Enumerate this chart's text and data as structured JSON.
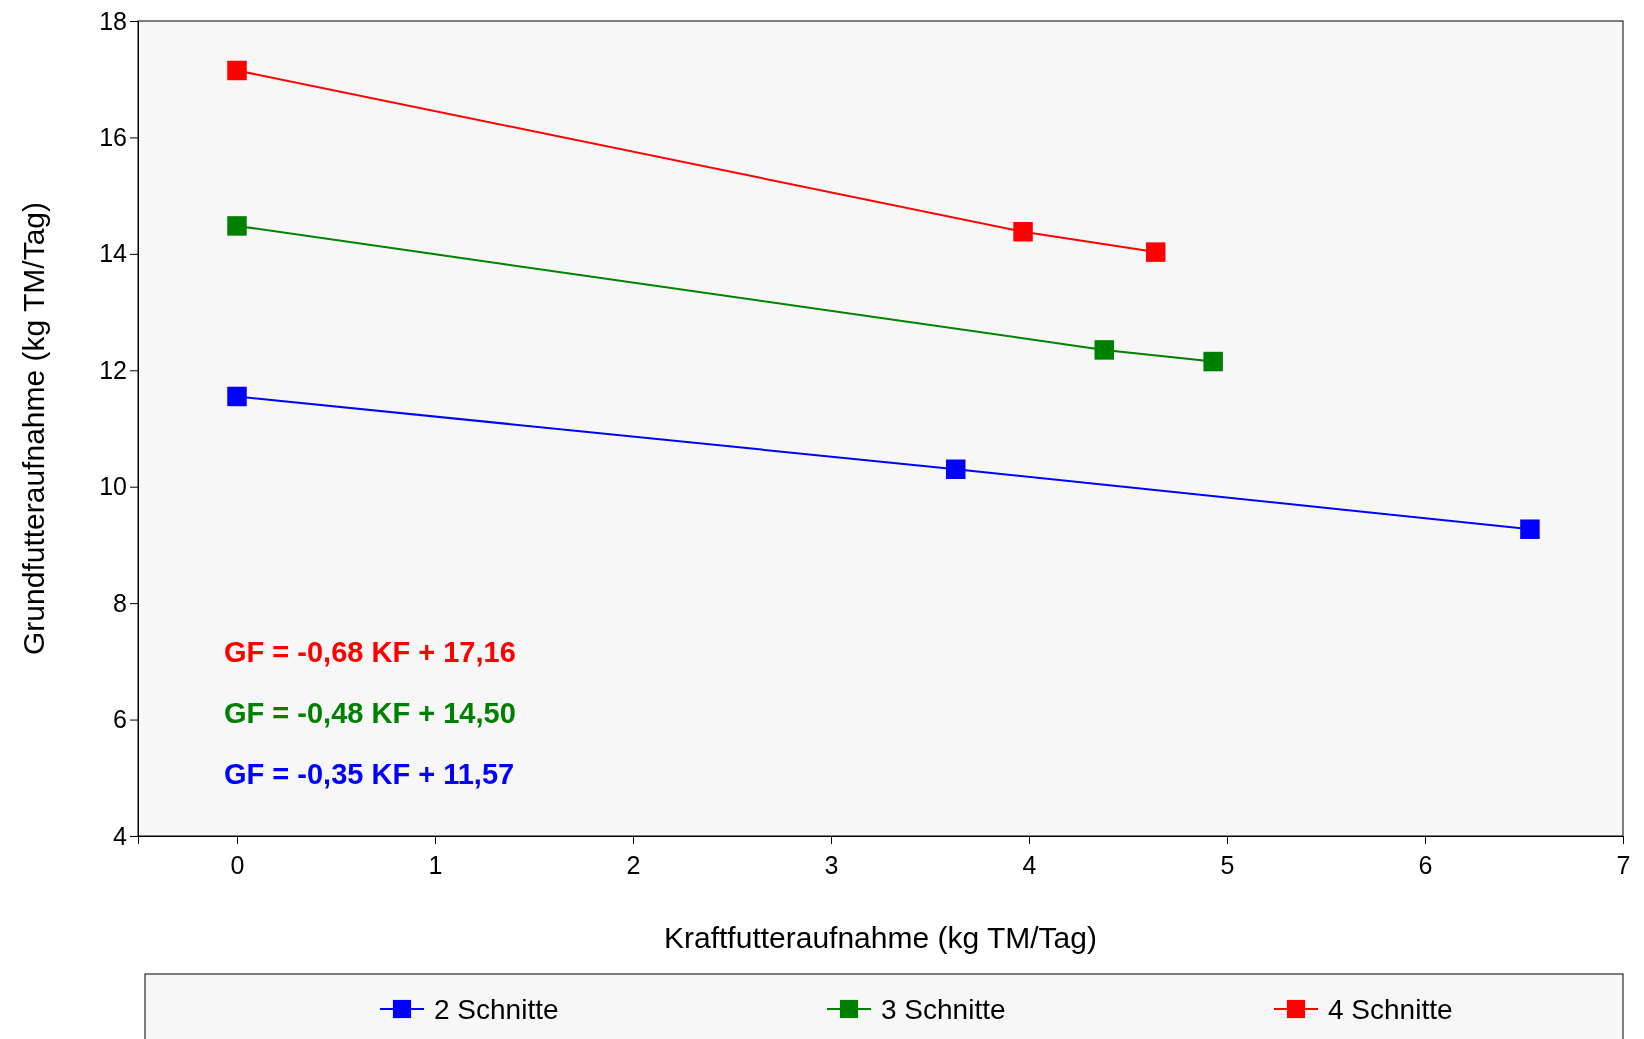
{
  "chart_data": {
    "type": "line",
    "xlabel": "Kraftfutteraufnahme (kg TM/Tag)",
    "ylabel": "Grundfutteraufnahme (kg TM/Tag)",
    "xlim": [
      -0.5,
      7
    ],
    "xticks": [
      0,
      1,
      2,
      3,
      4,
      5,
      6,
      7
    ],
    "ylim": [
      4,
      18
    ],
    "yticks": [
      4,
      6,
      8,
      10,
      12,
      14,
      16,
      18
    ],
    "marker": "square",
    "legend": "bottom",
    "grid": false,
    "series": [
      {
        "name": "2 Schnitte",
        "color": "#0000ff",
        "x": [
          0,
          3.63,
          6.53
        ],
        "values": [
          11.55,
          10.3,
          9.27
        ]
      },
      {
        "name": "3 Schnitte",
        "color": "#008000",
        "x": [
          0,
          4.38,
          4.93
        ],
        "values": [
          14.48,
          12.35,
          12.15
        ]
      },
      {
        "name": "4 Schnitte",
        "color": "#ff0000",
        "x": [
          0,
          3.97,
          4.64
        ],
        "values": [
          17.15,
          14.38,
          14.03
        ]
      }
    ],
    "annotations": [
      "GF = -0,68 KF + 17,16",
      "GF = -0,48 KF + 14,50",
      "GF = -0,35 KF + 11,57"
    ]
  }
}
